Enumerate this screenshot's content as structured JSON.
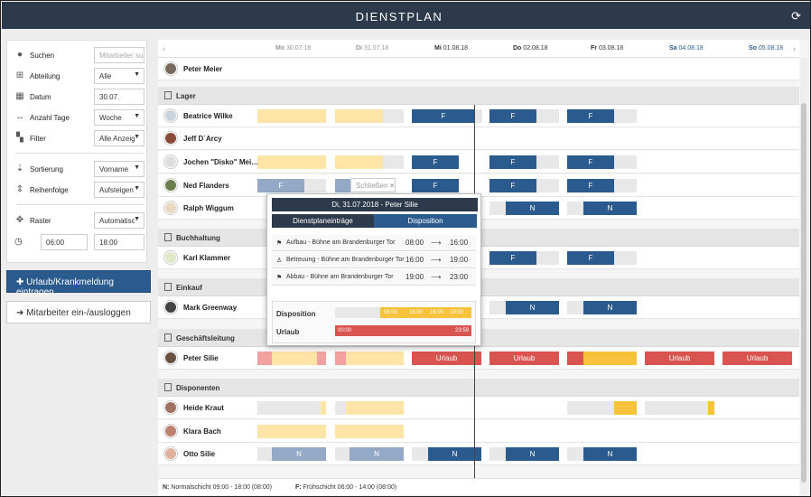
{
  "app": {
    "title": "DIENSTPLAN"
  },
  "filters": {
    "search": {
      "label": "Suchen",
      "placeholder": "Mitarbeiter suc"
    },
    "department": {
      "label": "Abteilung",
      "value": "Alle"
    },
    "date": {
      "label": "Datum",
      "value": "30.07."
    },
    "days": {
      "label": "Anzahl Tage",
      "value": "Woche"
    },
    "filter": {
      "label": "Filter",
      "value": "Alle Anzeig"
    },
    "sort": {
      "label": "Sortierung",
      "value": "Vorname"
    },
    "order": {
      "label": "Reihenfolge",
      "value": "Aufsteigen"
    },
    "grid": {
      "label": "Raster",
      "value": "Automatisc"
    },
    "time_from": "06:00",
    "time_to": "18:00"
  },
  "actions": {
    "vacation_label": "Urlaub/Krankmeldung eintragen",
    "login_label": "Mitarbeiter ein-/ausloggen"
  },
  "days": [
    {
      "name": "Mo",
      "date": "30.07.18"
    },
    {
      "name": "Di",
      "date": "31.07.18"
    },
    {
      "name": "Mi",
      "date": "01.08.18"
    },
    {
      "name": "Do",
      "date": "02.08.18"
    },
    {
      "name": "Fr",
      "date": "03.08.18"
    },
    {
      "name": "Sa",
      "date": "04.08.18"
    },
    {
      "name": "So",
      "date": "05.08.18"
    }
  ],
  "groups": [
    "Lager",
    "Buchhaltung",
    "Einkauf",
    "Geschäftsleitung",
    "Disponenten"
  ],
  "employees": {
    "peter_meier": "Peter Meier",
    "beatrice": "Beatrice Wilke",
    "jeff": "Jeff D´Arcy",
    "jochen": "Jochen \"Disko\" Mei…",
    "ned": "Ned Flanders",
    "ralph": "Ralph Wiggum",
    "karl": "Karl Klammer",
    "mark": "Mark Greenway",
    "peter_silie": "Peter Silie",
    "heide": "Heide Kraut",
    "klara": "Klara Bach",
    "otto": "Otto Silie"
  },
  "shift_labels": {
    "f": "F",
    "n": "N",
    "urlaub": "Urlaub"
  },
  "legend": {
    "n_key": "N:",
    "n_text": "Normalschicht 09:00 - 18:00 (08:00)",
    "f_key": "F:",
    "f_text": "Frühschicht 06:00 - 14:00 (08:00)"
  },
  "popup": {
    "close_label": "Schließen",
    "title": "Di, 31.07.2018 - Peter Silie",
    "tab_entries": "Dienstplaneinträge",
    "tab_disposition": "Disposition",
    "entries": [
      {
        "icon": "flag-icon",
        "label": "Aufbau - Bühne am Brandenburger Tor",
        "from": "08:00",
        "arrow": "⟶",
        "to": "16:00"
      },
      {
        "icon": "person-icon",
        "label": "Betreuung - Bühne am Brandenburger Tor",
        "from": "16:00",
        "arrow": "⟶",
        "to": "19:00"
      },
      {
        "icon": "flag-icon",
        "label": "Abbau - Bühne am Brandenburger Tor",
        "from": "19:00",
        "arrow": "⟶",
        "to": "23:00"
      }
    ],
    "disposition_label": "Disposition",
    "disposition_times": [
      "08:00",
      "16:00",
      "16:00",
      "19:00"
    ],
    "vacation_label": "Urlaub",
    "vacation_from": "00:00",
    "vacation_to": "23:59"
  },
  "colors": {
    "header": "#2c3a4b",
    "primary": "#2b5b8e",
    "shift_light": "#ffe4a8",
    "shift_dim": "#94a9c6",
    "vacation": "#d9534f",
    "orange": "#f9c23c"
  }
}
